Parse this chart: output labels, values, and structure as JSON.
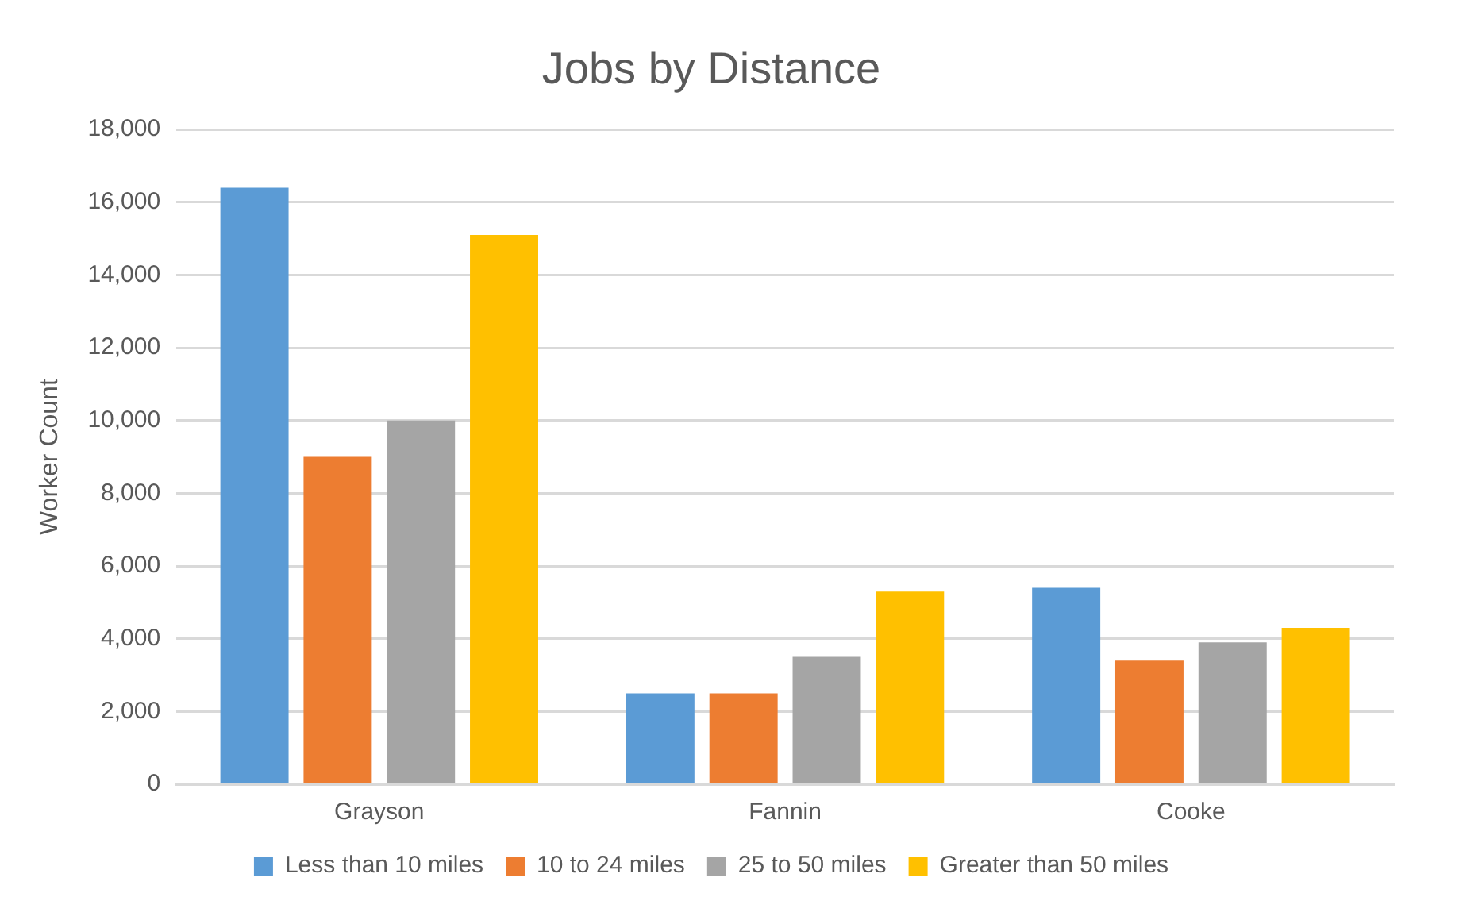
{
  "chart_data": {
    "type": "bar",
    "title": "Jobs by Distance",
    "ylabel": "Worker Count",
    "categories": [
      "Grayson",
      "Fannin",
      "Cooke"
    ],
    "series": [
      {
        "name": "Less than 10 miles",
        "color": "#5b9bd5",
        "values": [
          16400,
          2500,
          5400
        ]
      },
      {
        "name": "10 to 24 miles",
        "color": "#ed7d31",
        "values": [
          9000,
          2500,
          3400
        ]
      },
      {
        "name": "25 to 50 miles",
        "color": "#a5a5a5",
        "values": [
          10000,
          3500,
          3900
        ]
      },
      {
        "name": "Greater than 50 miles",
        "color": "#ffc000",
        "values": [
          15100,
          5300,
          4300
        ]
      }
    ],
    "ylim": [
      0,
      18000
    ],
    "yticks": [
      0,
      {
        "value": 2000,
        "label": "2,000"
      },
      {
        "value": 4000,
        "label": "4,000"
      },
      {
        "value": 6000,
        "label": "6,000"
      },
      {
        "value": 8000,
        "label": "8,000"
      },
      {
        "value": 10000,
        "label": "10,000"
      },
      {
        "value": 12000,
        "label": "12,000"
      },
      {
        "value": 14000,
        "label": "14,000"
      },
      {
        "value": 16000,
        "label": "16,000"
      },
      {
        "value": 18000,
        "label": "18,000"
      }
    ],
    "grid": "y",
    "legend": "bottom"
  }
}
